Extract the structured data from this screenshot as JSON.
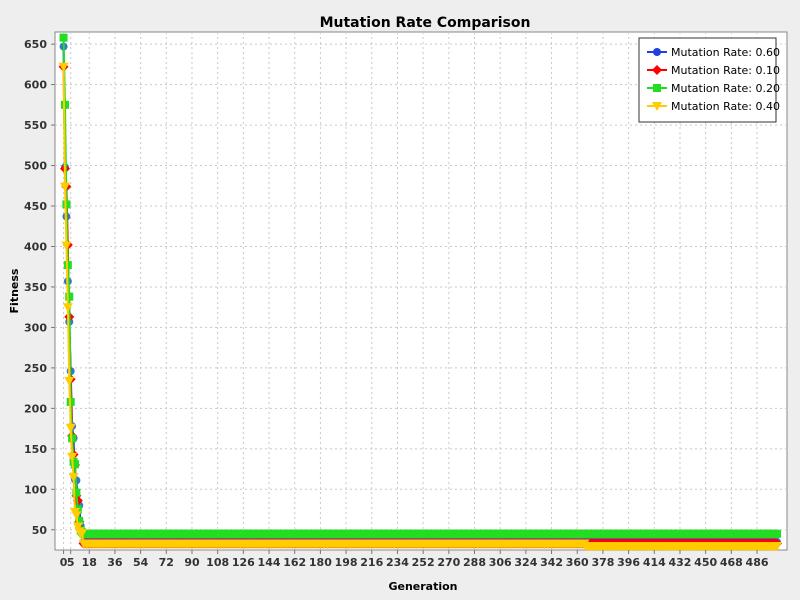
{
  "chart_data": {
    "type": "line",
    "title": "Mutation Rate Comparison",
    "xlabel": "Generation",
    "ylabel": "Fitness",
    "xlim": [
      -6,
      507
    ],
    "ylim": [
      25,
      665
    ],
    "x_ticks": [
      0,
      5,
      18,
      36,
      54,
      72,
      90,
      108,
      126,
      144,
      162,
      180,
      198,
      216,
      234,
      252,
      270,
      288,
      306,
      324,
      342,
      360,
      378,
      396,
      414,
      432,
      450,
      468,
      486
    ],
    "y_ticks": [
      50,
      100,
      150,
      200,
      250,
      300,
      350,
      400,
      450,
      500,
      550,
      600,
      650
    ],
    "grid": true,
    "legend_position": "top-right",
    "series": [
      {
        "name": "Mutation Rate: 0.60",
        "color": "#2040e0",
        "marker": "circle",
        "points": [
          [
            0,
            647
          ],
          [
            1,
            498
          ],
          [
            2,
            437
          ],
          [
            3,
            357
          ],
          [
            4,
            307
          ],
          [
            5,
            246
          ],
          [
            6,
            178
          ],
          [
            7,
            163
          ],
          [
            8,
            112
          ],
          [
            9,
            111
          ],
          [
            10,
            84
          ],
          [
            11,
            80
          ],
          [
            12,
            55
          ],
          [
            13,
            48
          ],
          [
            14,
            35
          ],
          [
            500,
            35
          ]
        ]
      },
      {
        "name": "Mutation Rate: 0.10",
        "color": "#ff0000",
        "marker": "diamond",
        "points": [
          [
            0,
            622
          ],
          [
            1,
            496
          ],
          [
            2,
            474
          ],
          [
            3,
            402
          ],
          [
            4,
            313
          ],
          [
            5,
            236
          ],
          [
            6,
            166
          ],
          [
            7,
            143
          ],
          [
            8,
            130
          ],
          [
            9,
            92
          ],
          [
            10,
            86
          ],
          [
            11,
            60
          ],
          [
            12,
            50
          ],
          [
            13,
            46
          ],
          [
            14,
            33
          ],
          [
            500,
            33
          ]
        ]
      },
      {
        "name": "Mutation Rate: 0.20",
        "color": "#22dd22",
        "marker": "square",
        "points": [
          [
            0,
            658
          ],
          [
            1,
            575
          ],
          [
            2,
            452
          ],
          [
            3,
            377
          ],
          [
            4,
            338
          ],
          [
            5,
            208
          ],
          [
            6,
            163
          ],
          [
            7,
            134
          ],
          [
            8,
            131
          ],
          [
            9,
            96
          ],
          [
            10,
            75
          ],
          [
            11,
            61
          ],
          [
            12,
            49
          ],
          [
            13,
            47
          ],
          [
            14,
            45
          ],
          [
            500,
            45
          ]
        ]
      },
      {
        "name": "Mutation Rate: 0.40",
        "color": "#ffcc00",
        "marker": "triangle-down",
        "points": [
          [
            0,
            622
          ],
          [
            1,
            474
          ],
          [
            2,
            401
          ],
          [
            3,
            325
          ],
          [
            4,
            234
          ],
          [
            5,
            176
          ],
          [
            6,
            140
          ],
          [
            7,
            115
          ],
          [
            8,
            72
          ],
          [
            9,
            68
          ],
          [
            10,
            54
          ],
          [
            11,
            48
          ],
          [
            12,
            46
          ],
          [
            14,
            33
          ],
          [
            365,
            33
          ],
          [
            366,
            30
          ],
          [
            500,
            30
          ]
        ]
      }
    ]
  }
}
